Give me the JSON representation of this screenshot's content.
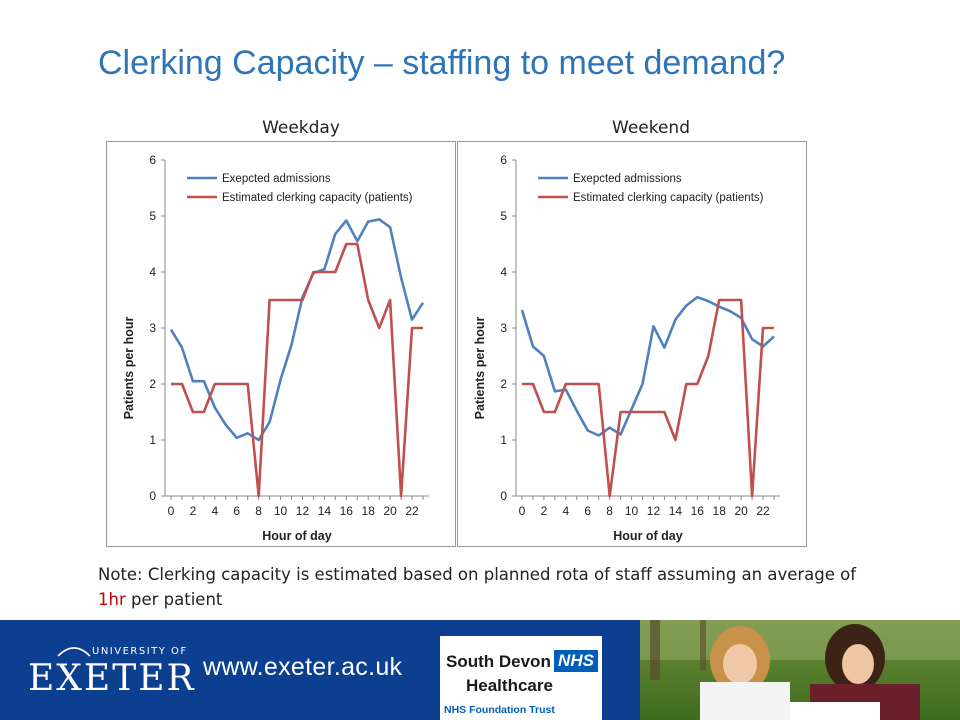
{
  "slide": {
    "title": "Clerking Capacity – staffing to meet demand?",
    "note_part1": "Note: Clerking capacity is estimated based on planned rota of staff assuming an average of ",
    "note_highlight": "1hr",
    "note_part2": " per patient"
  },
  "footer": {
    "university_small": "UNIVERSITY OF",
    "university_name": "EXETER",
    "url": "www.exeter.ac.uk",
    "nhs_org_line1": "South Devon",
    "nhs_org_line2": "Healthcare",
    "nhs_badge": "NHS",
    "nhs_trust": "NHS Foundation Trust"
  },
  "colors": {
    "title": "#2e75b6",
    "admissions": "#4f81bd",
    "capacity": "#c0504d",
    "footer_bg": "#0c3f8f",
    "nhs_blue": "#005eb8"
  },
  "chart_data": [
    {
      "type": "line",
      "title": "Weekday",
      "xlabel": "Hour of day",
      "ylabel": "Patients per hour",
      "xlim": [
        0,
        23
      ],
      "ylim": [
        0,
        6
      ],
      "x_ticks": [
        0,
        2,
        4,
        6,
        8,
        10,
        12,
        14,
        16,
        18,
        20,
        22
      ],
      "y_ticks": [
        0,
        1,
        2,
        3,
        4,
        5,
        6
      ],
      "grid": false,
      "legend_position": "top-left",
      "x": [
        0,
        1,
        2,
        3,
        4,
        5,
        6,
        7,
        8,
        9,
        10,
        11,
        12,
        13,
        14,
        15,
        16,
        17,
        18,
        19,
        20,
        21,
        22,
        23
      ],
      "series": [
        {
          "name": "Exepcted admissions",
          "color": "#4f81bd",
          "values": [
            2.97,
            2.65,
            2.05,
            2.05,
            1.58,
            1.27,
            1.04,
            1.12,
            1.0,
            1.32,
            2.08,
            2.7,
            3.55,
            3.98,
            4.05,
            4.68,
            4.92,
            4.55,
            4.9,
            4.94,
            4.8,
            3.9,
            3.15,
            3.45
          ]
        },
        {
          "name": "Estimated clerking capacity (patients)",
          "color": "#c0504d",
          "values": [
            2,
            2,
            1.5,
            1.5,
            2,
            2,
            2,
            2,
            0,
            3.5,
            3.5,
            3.5,
            3.5,
            4,
            4,
            4,
            4.5,
            4.5,
            3.5,
            3,
            3.5,
            0,
            3,
            3
          ]
        }
      ]
    },
    {
      "type": "line",
      "title": "Weekend",
      "xlabel": "Hour of day",
      "ylabel": "Patients per hour",
      "xlim": [
        0,
        23
      ],
      "ylim": [
        0,
        6
      ],
      "x_ticks": [
        0,
        2,
        4,
        6,
        8,
        10,
        12,
        14,
        16,
        18,
        20,
        22
      ],
      "y_ticks": [
        0,
        1,
        2,
        3,
        4,
        5,
        6
      ],
      "grid": false,
      "legend_position": "top-left",
      "x": [
        0,
        1,
        2,
        3,
        4,
        5,
        6,
        7,
        8,
        9,
        10,
        11,
        12,
        13,
        14,
        15,
        16,
        17,
        18,
        19,
        20,
        21,
        22,
        23
      ],
      "series": [
        {
          "name": "Exepcted admissions",
          "color": "#4f81bd",
          "values": [
            3.32,
            2.67,
            2.5,
            1.87,
            1.9,
            1.52,
            1.17,
            1.08,
            1.22,
            1.1,
            1.55,
            2.0,
            3.03,
            2.65,
            3.15,
            3.4,
            3.55,
            3.48,
            3.38,
            3.3,
            3.18,
            2.8,
            2.67,
            2.85
          ]
        },
        {
          "name": "Estimated clerking capacity (patients)",
          "color": "#c0504d",
          "values": [
            2,
            2,
            1.5,
            1.5,
            2,
            2,
            2,
            2,
            0,
            1.5,
            1.5,
            1.5,
            1.5,
            1.5,
            1,
            2,
            2,
            2.5,
            3.5,
            3.5,
            3.5,
            0,
            3,
            3
          ]
        }
      ]
    }
  ]
}
